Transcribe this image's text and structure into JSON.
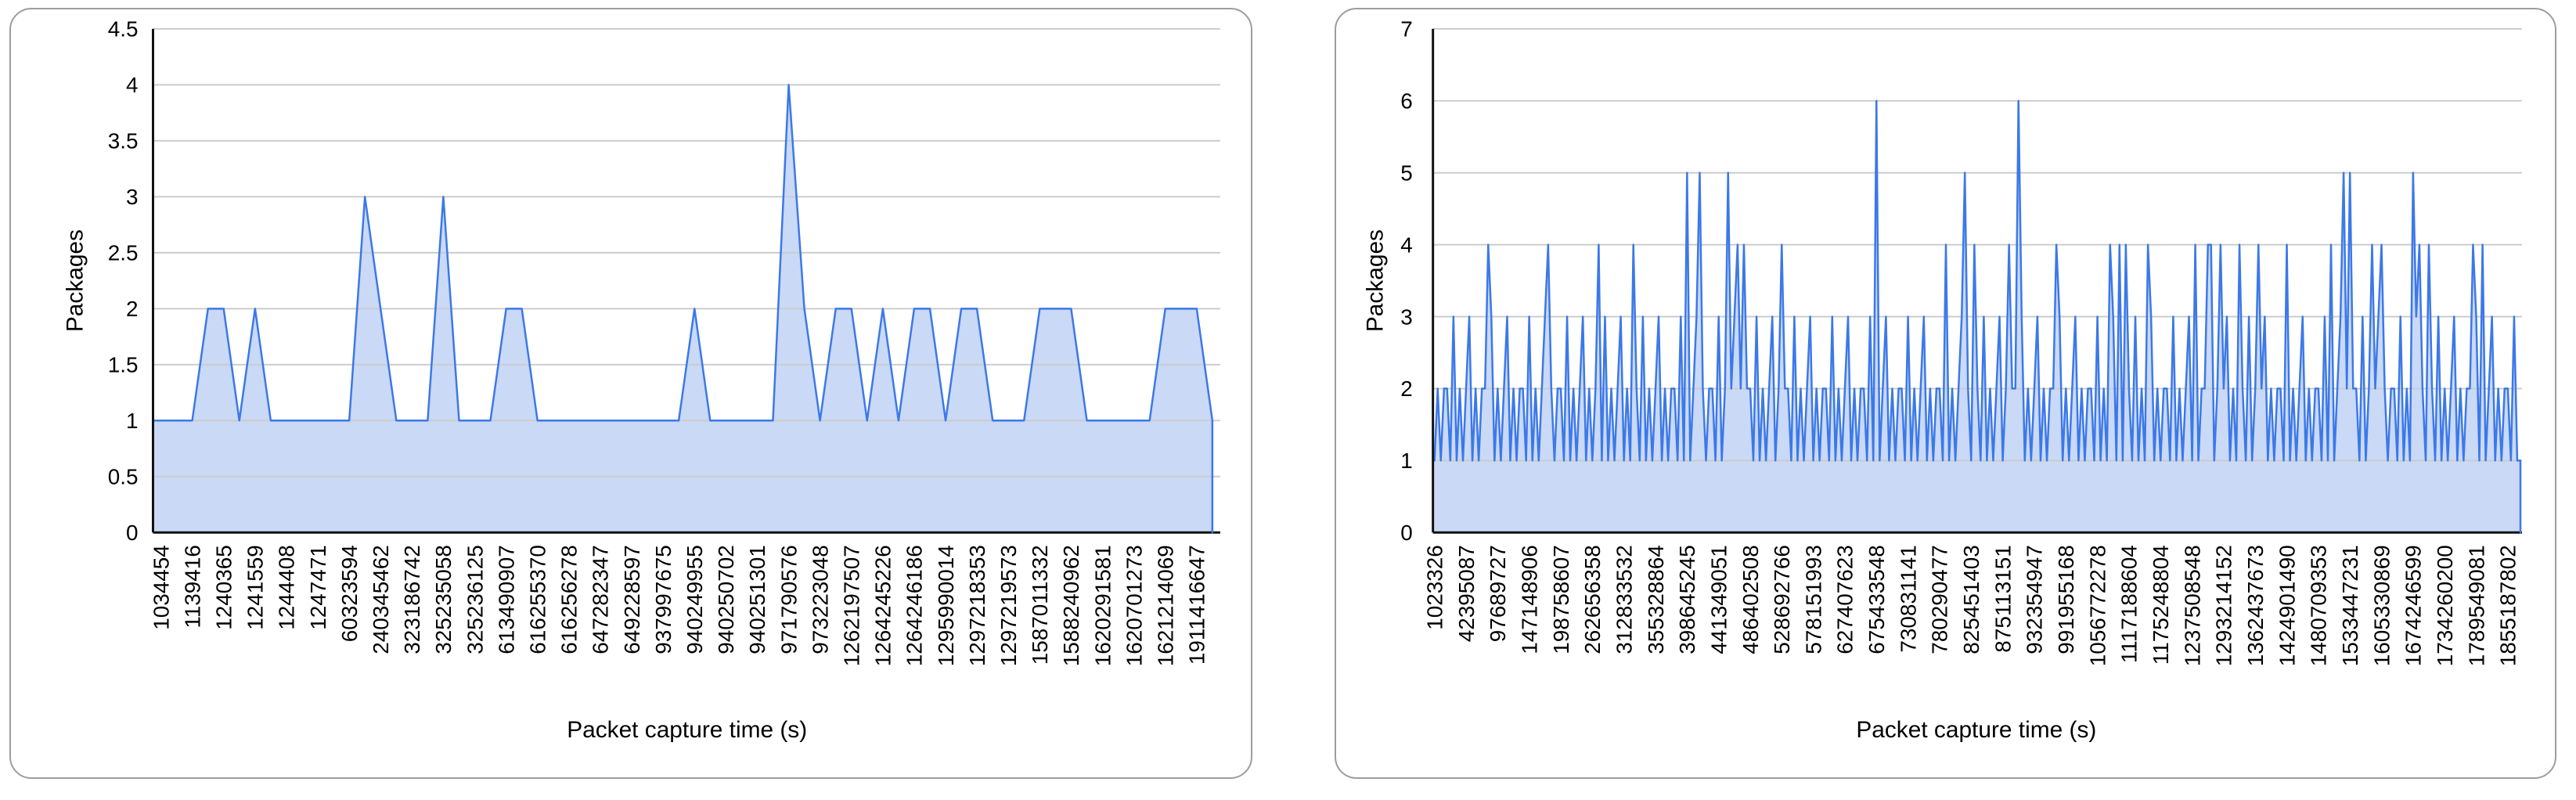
{
  "colors": {
    "series_line": "#3c78e8",
    "series_fill": "#c9d9f6",
    "gridline": "#cccccc",
    "axis_line": "#111111",
    "card_border": "#9d9d9d",
    "text": "#000000",
    "background": "#ffffff"
  },
  "chart_data": [
    {
      "type": "area",
      "title": "",
      "ylabel": "Packages",
      "xlabel": "Packet capture time (s)",
      "ylim": [
        0,
        4.5
      ],
      "grid": true,
      "legend": "none",
      "y_tick_labels": [
        "0",
        "0.5",
        "1",
        "1.5",
        "2",
        "2.5",
        "3",
        "3.5",
        "4",
        "4.5"
      ],
      "y_ticks": [
        0,
        0.5,
        1,
        1.5,
        2,
        2.5,
        3,
        3.5,
        4,
        4.5
      ],
      "categories": [
        "1034454",
        "1139416",
        "1240365",
        "1241559",
        "1244408",
        "1247471",
        "60323594",
        "240345462",
        "323186742",
        "325235058",
        "325236125",
        "613490907",
        "616255370",
        "616256278",
        "647282347",
        "649228597",
        "937997675",
        "940249955",
        "940250702",
        "940251301",
        "971790576",
        "973223048",
        "1262197507",
        "1264245226",
        "1264246186",
        "1295990014",
        "1297218353",
        "1297219573",
        "1587011332",
        "1588240962",
        "1620291581",
        "1620701273",
        "1621214069",
        "1911416647"
      ],
      "label_every": 2,
      "values": [
        1,
        1,
        1,
        2,
        2,
        1,
        2,
        1,
        1,
        1,
        1,
        1,
        1,
        3,
        2,
        1,
        1,
        1,
        3,
        1,
        1,
        1,
        2,
        2,
        1,
        1,
        1,
        1,
        1,
        1,
        1,
        1,
        1,
        1,
        2,
        1,
        1,
        1,
        1,
        1,
        4,
        2,
        1,
        2,
        2,
        1,
        2,
        1,
        2,
        2,
        1,
        2,
        2,
        1,
        1,
        1,
        2,
        2,
        2,
        1,
        1,
        1,
        1,
        1,
        2,
        2,
        2,
        1
      ]
    },
    {
      "type": "area",
      "title": "",
      "ylabel": "Packages",
      "xlabel": "Packet capture time (s)",
      "ylim": [
        0,
        7
      ],
      "grid": true,
      "legend": "none",
      "y_tick_labels": [
        "0",
        "1",
        "2",
        "3",
        "4",
        "5",
        "6",
        "7"
      ],
      "y_ticks": [
        0,
        1,
        2,
        3,
        4,
        5,
        6,
        7
      ],
      "categories": [
        "1023326",
        "42395087",
        "97689727",
        "147148906",
        "198758607",
        "262656358",
        "312833532",
        "355328864",
        "398645245",
        "441349051",
        "486402508",
        "528692766",
        "578151993",
        "627407623",
        "675433548",
        "730831141",
        "780290477",
        "825451403",
        "875113151",
        "932354947",
        "991955168",
        "1056772278",
        "1117188604",
        "1175248804",
        "1237508548",
        "1293214152",
        "1362437673",
        "1424901490",
        "1480709353",
        "1533447231",
        "1605330869",
        "1674246599",
        "1734260200",
        "1789549081",
        "1855187802"
      ],
      "label_every": 10,
      "values": [
        1,
        2,
        1,
        2,
        2,
        1,
        3,
        1,
        2,
        1,
        2,
        3,
        1,
        2,
        1,
        2,
        2,
        4,
        3,
        1,
        2,
        1,
        2,
        3,
        1,
        2,
        1,
        2,
        2,
        1,
        3,
        1,
        2,
        1,
        2,
        3,
        4,
        2,
        1,
        2,
        2,
        1,
        3,
        1,
        2,
        1,
        2,
        3,
        1,
        2,
        1,
        2,
        4,
        1,
        3,
        1,
        2,
        1,
        2,
        3,
        1,
        2,
        1,
        4,
        2,
        1,
        3,
        1,
        2,
        1,
        2,
        3,
        1,
        2,
        1,
        2,
        2,
        1,
        3,
        1,
        5,
        1,
        2,
        3,
        5,
        2,
        1,
        2,
        2,
        1,
        3,
        1,
        2,
        5,
        2,
        3,
        4,
        2,
        4,
        2,
        2,
        1,
        3,
        1,
        2,
        1,
        2,
        3,
        1,
        2,
        4,
        2,
        2,
        1,
        3,
        1,
        2,
        1,
        2,
        3,
        1,
        2,
        1,
        2,
        2,
        1,
        3,
        1,
        2,
        1,
        2,
        3,
        1,
        2,
        1,
        2,
        2,
        1,
        3,
        1,
        6,
        1,
        2,
        3,
        1,
        2,
        1,
        2,
        2,
        1,
        3,
        1,
        2,
        1,
        2,
        3,
        1,
        2,
        1,
        2,
        2,
        1,
        4,
        1,
        2,
        1,
        2,
        3,
        5,
        2,
        1,
        4,
        2,
        1,
        3,
        1,
        2,
        1,
        2,
        3,
        1,
        2,
        4,
        2,
        2,
        6,
        3,
        1,
        2,
        1,
        2,
        3,
        1,
        2,
        1,
        2,
        2,
        4,
        3,
        1,
        2,
        1,
        2,
        3,
        1,
        2,
        1,
        2,
        2,
        1,
        3,
        1,
        2,
        1,
        4,
        3,
        1,
        4,
        1,
        4,
        2,
        1,
        3,
        1,
        2,
        1,
        4,
        3,
        1,
        2,
        1,
        2,
        2,
        1,
        3,
        1,
        2,
        1,
        2,
        3,
        1,
        4,
        1,
        2,
        2,
        4,
        4,
        1,
        2,
        4,
        2,
        3,
        1,
        2,
        1,
        4,
        2,
        1,
        3,
        1,
        2,
        4,
        2,
        3,
        1,
        2,
        1,
        2,
        2,
        1,
        4,
        1,
        2,
        1,
        2,
        3,
        1,
        2,
        1,
        2,
        2,
        1,
        3,
        1,
        4,
        1,
        2,
        3,
        5,
        2,
        5,
        2,
        2,
        1,
        3,
        1,
        2,
        4,
        2,
        3,
        4,
        2,
        1,
        2,
        2,
        1,
        3,
        1,
        2,
        1,
        5,
        3,
        4,
        2,
        1,
        4,
        2,
        1,
        3,
        1,
        2,
        1,
        2,
        3,
        1,
        2,
        1,
        2,
        2,
        4,
        3,
        1,
        4,
        1,
        2,
        3,
        1,
        2,
        1,
        2,
        2,
        1,
        3,
        1,
        1
      ]
    }
  ]
}
